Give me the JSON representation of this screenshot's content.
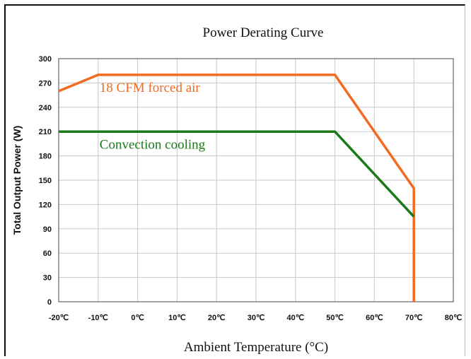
{
  "chart_data": {
    "type": "line",
    "title": "Power Derating Curve",
    "xlabel": "Ambient Temperature (°C)",
    "ylabel": "Total Output Power (W)",
    "xlim": [
      -20,
      80
    ],
    "ylim": [
      0,
      300
    ],
    "x_ticks": [
      -20,
      -10,
      0,
      10,
      20,
      30,
      40,
      50,
      60,
      70,
      80
    ],
    "x_tick_labels": [
      "-20℃",
      "-10℃",
      "0℃",
      "10℃",
      "20℃",
      "30℃",
      "40℃",
      "50℃",
      "60℃",
      "70℃",
      "80℃"
    ],
    "y_ticks": [
      0,
      30,
      60,
      90,
      120,
      150,
      180,
      210,
      240,
      270,
      300
    ],
    "y_tick_labels": [
      "0",
      "30",
      "60",
      "90",
      "120",
      "150",
      "180",
      "210",
      "240",
      "270",
      "300"
    ],
    "grid": true,
    "series": [
      {
        "name": "18 CFM forced air",
        "color": "#f26b21",
        "x": [
          -20,
          -10,
          50,
          70,
          70
        ],
        "y": [
          260,
          280,
          280,
          140,
          0
        ]
      },
      {
        "name": "Convection cooling",
        "color": "#1a7a1a",
        "x": [
          -20,
          50,
          70
        ],
        "y": [
          210,
          210,
          105
        ]
      }
    ],
    "annotations": [
      {
        "text": "18 CFM forced air",
        "x": -10,
        "y": 265,
        "color": "#f26b21"
      },
      {
        "text": "Convection cooling",
        "x": -10,
        "y": 195,
        "color": "#1a7a1a"
      }
    ]
  }
}
